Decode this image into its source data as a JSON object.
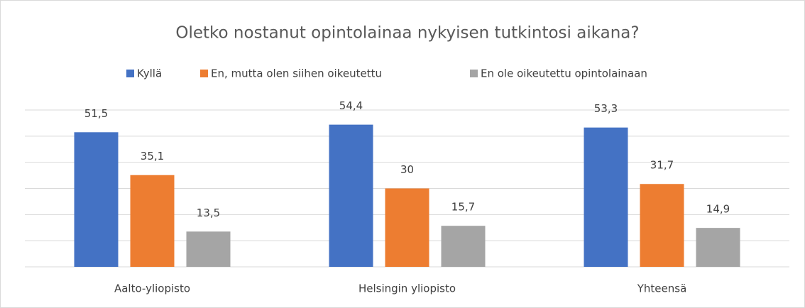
{
  "chart_data": {
    "type": "bar",
    "title": "Oletko nostanut opintolainaa nykyisen tutkintosi aikana?",
    "categories": [
      "Aalto-yliopisto",
      "Helsingin yliopisto",
      "Yhteensä"
    ],
    "series": [
      {
        "name": "Kyllä",
        "color": "#4472c4",
        "values": [
          51.5,
          54.4,
          53.3
        ],
        "value_labels": [
          "51,5",
          "54,4",
          "53,3"
        ]
      },
      {
        "name": "En, mutta olen siihen oikeutettu",
        "color": "#ed7d31",
        "values": [
          35.1,
          30,
          31.7
        ],
        "value_labels": [
          "35,1",
          "30",
          "31,7"
        ]
      },
      {
        "name": "En ole oikeutettu opintolainaan",
        "color": "#a5a5a5",
        "values": [
          13.5,
          15.7,
          14.9
        ],
        "value_labels": [
          "13,5",
          "15,7",
          "14,9"
        ]
      }
    ],
    "ylim": [
      0,
      60
    ],
    "yticks": [
      0,
      10,
      20,
      30,
      40,
      50,
      60
    ],
    "grid": true,
    "legend": "top"
  }
}
